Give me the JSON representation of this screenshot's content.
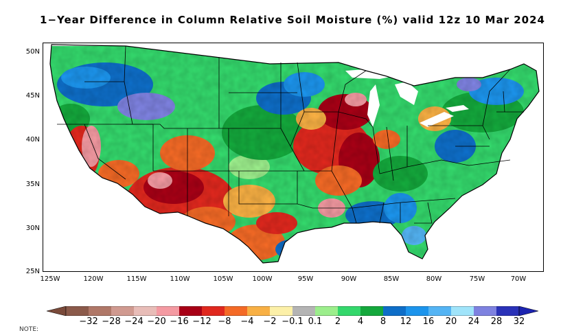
{
  "title": "1−Year Difference in Column Relative Soil Moisture (%) valid 12z 10 Mar 2024",
  "map": {
    "lat_labels": [
      "50N",
      "45N",
      "40N",
      "35N",
      "30N",
      "25N"
    ],
    "lon_labels": [
      "125W",
      "120W",
      "115W",
      "110W",
      "105W",
      "100W",
      "95W",
      "90W",
      "85W",
      "80W",
      "75W",
      "70W"
    ],
    "extent": {
      "lon_min": -126,
      "lon_max": -68,
      "lat_min": 25,
      "lat_max": 50.5
    }
  },
  "colorbar": {
    "labels": [
      "−32",
      "−28",
      "−24",
      "−20",
      "−16",
      "−12",
      "−8",
      "−4",
      "−2",
      "−0.1",
      "0.1",
      "2",
      "4",
      "8",
      "12",
      "16",
      "20",
      "24",
      "28",
      "32"
    ],
    "colors": [
      "#8b5a4a",
      "#b07868",
      "#d09a90",
      "#e8bdb8",
      "#f49aa2",
      "#a80016",
      "#e0281e",
      "#f46a26",
      "#f8b044",
      "#fcf0a8",
      "#b4b4b4",
      "#9cee8c",
      "#34d86c",
      "#14a83c",
      "#0e6ec8",
      "#1c94ec",
      "#54b4f4",
      "#a0e4fa",
      "#7e82e0",
      "#2a32b8"
    ],
    "under_color": "#7a4a3a",
    "over_color": "#1c24b0"
  },
  "note": "NOTE:"
}
